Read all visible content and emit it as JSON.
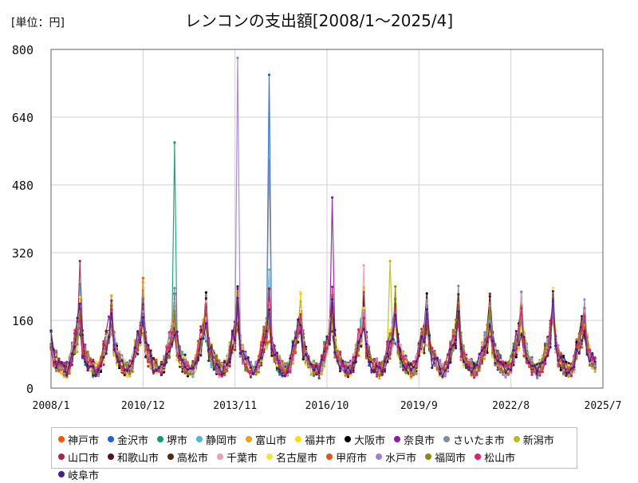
{
  "chart_data": {
    "type": "line",
    "title": "レンコンの支出額[2008/1～2025/4]",
    "unit_label": "[単位：円]",
    "xlabel": "",
    "ylabel": "",
    "ylim": [
      0,
      800
    ],
    "yticks": [
      0,
      160,
      320,
      480,
      640,
      800
    ],
    "x_range": [
      "2008/1",
      "2025/7"
    ],
    "xticks": [
      "2008/1",
      "2010/12",
      "2013/11",
      "2016/10",
      "2019/9",
      "2022/8",
      "2025/7"
    ],
    "grid": {
      "x": true,
      "y": true
    },
    "legend_position": "bottom",
    "series": [
      {
        "name": "神戸市",
        "color": "#ff5500",
        "peak": {
          "period": "2010/12",
          "value": 260
        }
      },
      {
        "name": "金沢市",
        "color": "#1f5fe0",
        "peak": {
          "period": "2014/12",
          "value": 740
        }
      },
      {
        "name": "堺市",
        "color": "#0b9e6e",
        "peak": {
          "period": "2011/12",
          "value": 580
        }
      },
      {
        "name": "静岡市",
        "color": "#4ab8d8",
        "peak": {
          "period": "2014/12",
          "value": 280
        }
      },
      {
        "name": "富山市",
        "color": "#f0a000",
        "peak": {
          "period": "2010/12",
          "value": 250
        }
      },
      {
        "name": "福井市",
        "color": "#ffe000",
        "peak": {
          "period": "2018/12",
          "value": 200
        }
      },
      {
        "name": "大阪市",
        "color": "#000000",
        "peak": {
          "period": "2010/12",
          "value": 210
        }
      },
      {
        "name": "奈良市",
        "color": "#8e1aa8",
        "peak": {
          "period": "2016/12",
          "value": 450
        }
      },
      {
        "name": "さいたま市",
        "color": "#7f8c99",
        "peak": {
          "period": "2014/12",
          "value": 540
        }
      },
      {
        "name": "新潟市",
        "color": "#b5bd1d",
        "peak": {
          "period": "2018/10",
          "value": 300
        }
      },
      {
        "name": "山口市",
        "color": "#a02850",
        "peak": {
          "period": "2008/12",
          "value": 300
        }
      },
      {
        "name": "和歌山市",
        "color": "#5a1020",
        "peak": {
          "period": "2013/12",
          "value": 240
        }
      },
      {
        "name": "高松市",
        "color": "#4a2c10",
        "peak": {
          "period": "2012/12",
          "value": 190
        }
      },
      {
        "name": "千葉市",
        "color": "#f0a0a8",
        "peak": {
          "period": "2017/12",
          "value": 290
        }
      },
      {
        "name": "名古屋市",
        "color": "#e8e840",
        "peak": {
          "period": "2013/12",
          "value": 170
        }
      },
      {
        "name": "甲府市",
        "color": "#d85a1a",
        "peak": {
          "period": "2016/12",
          "value": 220
        }
      },
      {
        "name": "水戸市",
        "color": "#a080d8",
        "peak": {
          "period": "2013/12",
          "value": 780
        }
      },
      {
        "name": "福岡市",
        "color": "#8a8a10",
        "peak": {
          "period": "2018/12",
          "value": 240
        }
      },
      {
        "name": "松山市",
        "color": "#e0206a",
        "peak": {
          "period": "2016/12",
          "value": 200
        }
      },
      {
        "name": "岐阜市",
        "color": "#4a1a9a",
        "peak": {
          "period": "2016/12",
          "value": 210
        }
      }
    ]
  }
}
